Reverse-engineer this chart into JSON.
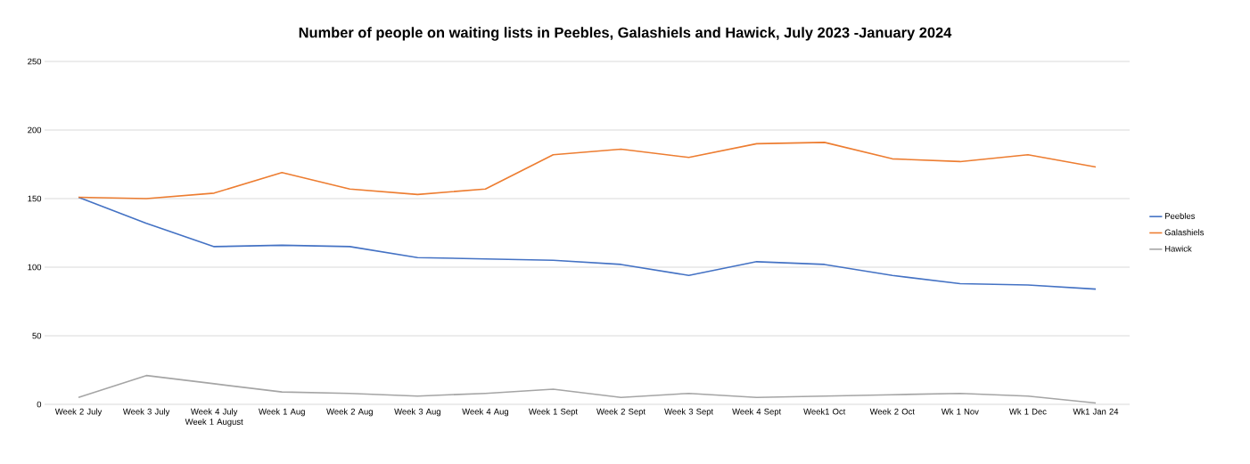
{
  "chart_data": {
    "type": "line",
    "title": "Number of people on waiting lists in Peebles, Galashiels and Hawick, July 2023 -January 2024",
    "categories": [
      "Week 2 July",
      "Week 3 July",
      "Week 4 July Week 1 August",
      "Week 1 Aug",
      "Week 2 Aug",
      "Week 3 Aug",
      "Week 4 Aug",
      "Week 1 Sept",
      "Week 2 Sept",
      "Week 3 Sept",
      "Week 4 Sept",
      "Week1 Oct",
      "Week 2 Oct",
      "Wk 1 Nov",
      "Wk 1 Dec",
      "Wk1 Jan 24"
    ],
    "series": [
      {
        "name": "Peebles",
        "color": "#4472c4",
        "values": [
          151,
          132,
          115,
          116,
          115,
          107,
          106,
          105,
          102,
          94,
          104,
          102,
          94,
          88,
          87,
          84
        ]
      },
      {
        "name": "Galashiels",
        "color": "#ed7d31",
        "values": [
          151,
          150,
          154,
          169,
          157,
          153,
          157,
          182,
          186,
          180,
          190,
          191,
          179,
          177,
          182,
          173
        ]
      },
      {
        "name": "Hawick",
        "color": "#a5a5a5",
        "values": [
          5,
          21,
          15,
          9,
          8,
          6,
          8,
          11,
          5,
          8,
          5,
          6,
          7,
          8,
          6,
          1
        ]
      }
    ],
    "ylim": [
      0,
      250
    ],
    "yticks": [
      0,
      50,
      100,
      150,
      200,
      250
    ],
    "grid": "y",
    "legend": "right",
    "marker": "none",
    "line_style": "solid"
  }
}
